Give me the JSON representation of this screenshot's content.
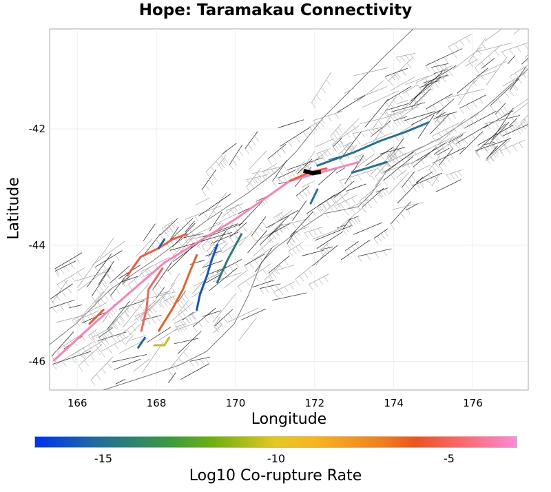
{
  "chart_data": {
    "type": "map",
    "title": "Hope: Taramakau Connectivity",
    "xlabel": "Longitude",
    "ylabel": "Latitude",
    "xlim": [
      165.3,
      177.4
    ],
    "ylim": [
      -46.49,
      -40.28
    ],
    "xticks": [
      166,
      168,
      170,
      172,
      174,
      176
    ],
    "yticks": [
      -42,
      -44,
      -46
    ],
    "colorbar": {
      "label": "Log10 Co-rupture Rate",
      "range": [
        -17,
        -3
      ],
      "ticks": [
        -15,
        -10,
        -5
      ]
    },
    "source_fault": {
      "name": "Hope: Taramakau",
      "color": "#000000",
      "trace": [
        [
          171.72,
          -42.72
        ],
        [
          171.95,
          -42.76
        ],
        [
          172.16,
          -42.74
        ]
      ]
    },
    "ruptures": [
      {
        "value": -3.5,
        "trace": [
          [
            165.41,
            -45.98
          ],
          [
            166.5,
            -45.3
          ],
          [
            168.2,
            -44.3
          ],
          [
            170.0,
            -43.55
          ],
          [
            171.38,
            -42.89
          ],
          [
            172.3,
            -42.72
          ],
          [
            173.12,
            -42.57
          ]
        ]
      },
      {
        "value": -5.5,
        "trace": [
          [
            171.38,
            -42.89
          ],
          [
            171.9,
            -42.74
          ],
          [
            172.3,
            -42.68
          ]
        ]
      },
      {
        "value": -15,
        "trace": [
          [
            172.07,
            -42.63
          ],
          [
            173.0,
            -42.4
          ],
          [
            173.64,
            -42.21
          ],
          [
            174.3,
            -42.05
          ],
          [
            174.87,
            -41.89
          ]
        ]
      },
      {
        "value": -16,
        "trace": [
          [
            169.02,
            -45.11
          ],
          [
            169.1,
            -44.85
          ],
          [
            169.28,
            -44.52
          ],
          [
            169.4,
            -44.25
          ],
          [
            169.54,
            -43.99
          ]
        ]
      },
      {
        "value": -14.5,
        "trace": [
          [
            169.54,
            -44.64
          ],
          [
            169.8,
            -44.25
          ],
          [
            170.15,
            -43.81
          ]
        ]
      },
      {
        "value": -5.5,
        "trace": [
          [
            167.27,
            -44.52
          ],
          [
            167.6,
            -44.2
          ],
          [
            168.06,
            -44.05
          ],
          [
            168.4,
            -43.9
          ],
          [
            168.76,
            -43.81
          ]
        ]
      },
      {
        "value": -6.2,
        "trace": [
          [
            168.06,
            -45.47
          ],
          [
            168.4,
            -45.1
          ],
          [
            168.67,
            -44.76
          ],
          [
            168.85,
            -44.45
          ],
          [
            169.02,
            -44.17
          ]
        ]
      },
      {
        "value": -5.0,
        "trace": [
          [
            167.62,
            -45.47
          ],
          [
            167.75,
            -45.1
          ],
          [
            167.8,
            -44.76
          ],
          [
            168.15,
            -44.4
          ]
        ]
      },
      {
        "value": -5.6,
        "trace": [
          [
            166.31,
            -45.35
          ],
          [
            166.66,
            -45.11
          ]
        ]
      },
      {
        "value": -10.5,
        "trace": [
          [
            167.95,
            -45.72
          ],
          [
            168.2,
            -45.72
          ],
          [
            168.32,
            -45.59
          ]
        ]
      },
      {
        "value": -15.5,
        "trace": [
          [
            167.54,
            -45.76
          ],
          [
            167.71,
            -45.59
          ]
        ]
      },
      {
        "value": -15,
        "trace": [
          [
            171.9,
            -43.28
          ],
          [
            172.07,
            -43.04
          ]
        ]
      },
      {
        "value": -15,
        "trace": [
          [
            172.95,
            -42.75
          ],
          [
            173.4,
            -42.66
          ],
          [
            173.82,
            -42.57
          ]
        ]
      },
      {
        "value": -15.5,
        "trace": [
          [
            168.06,
            -44.05
          ],
          [
            168.2,
            -43.9
          ]
        ]
      }
    ]
  }
}
